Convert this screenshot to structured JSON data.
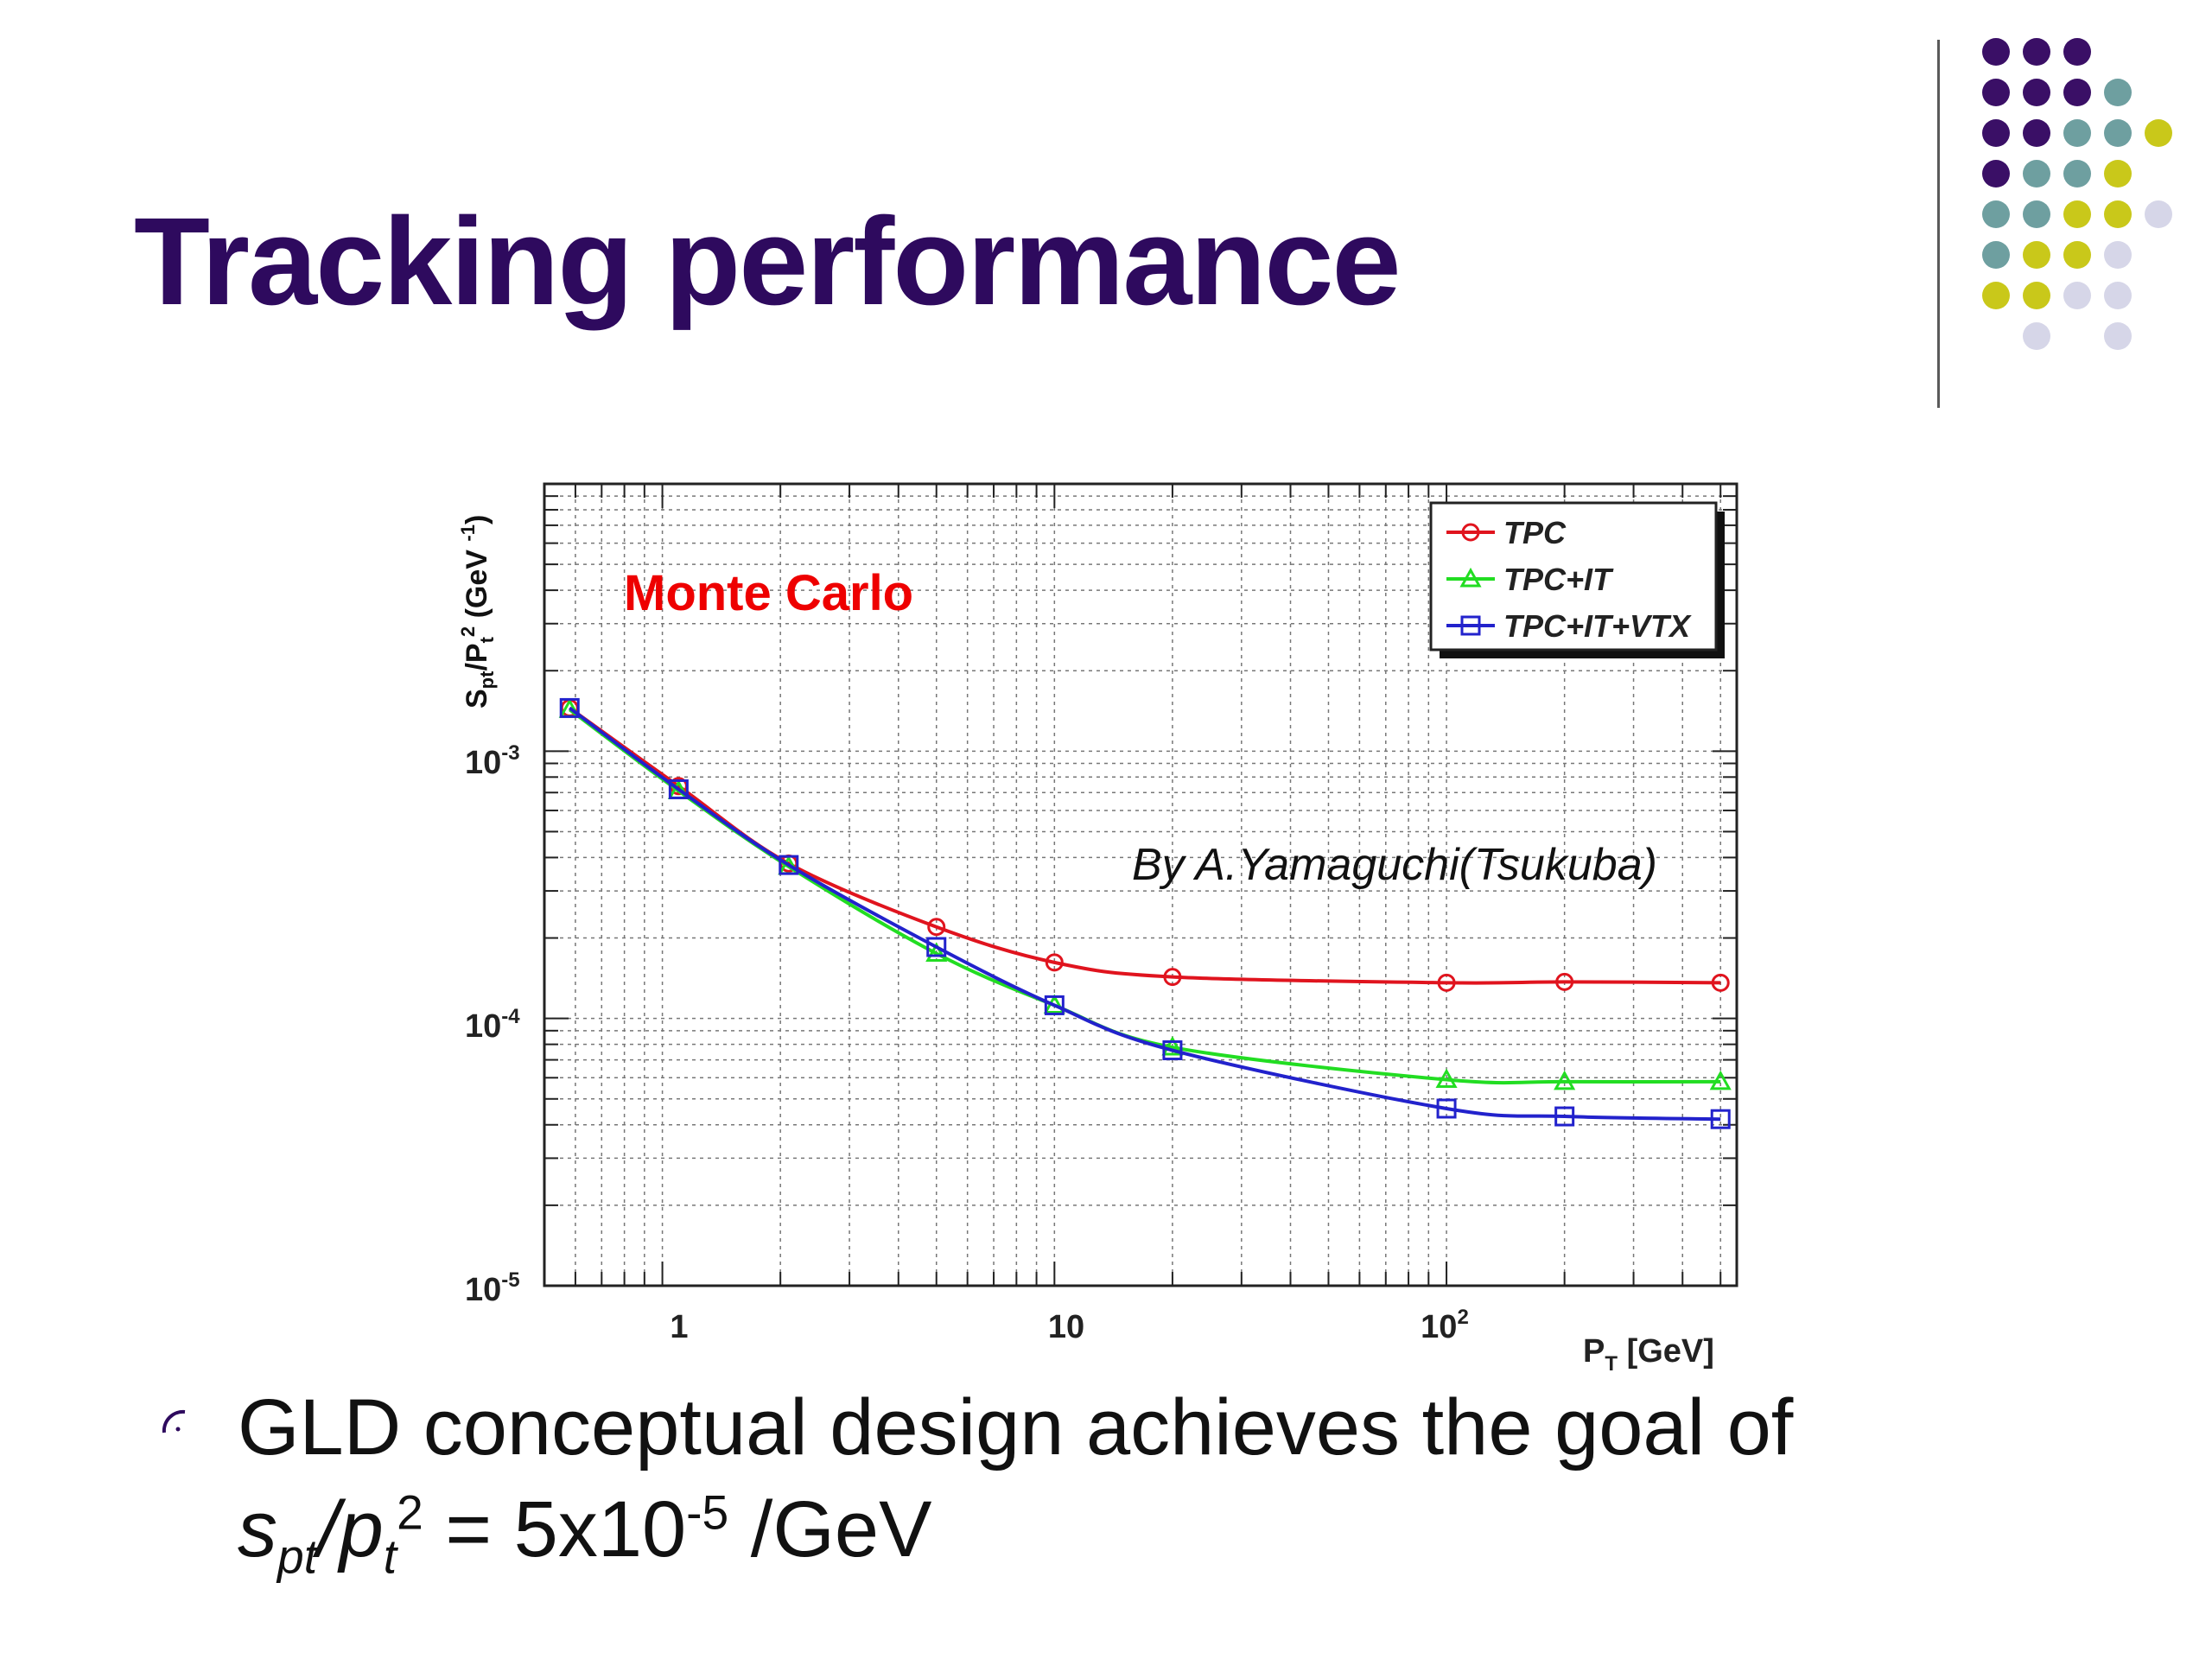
{
  "slide": {
    "title": "Tracking performance",
    "bullet_line1": "GLD conceptual design achieves the goal of",
    "bullet_line2": {
      "s": "s",
      "s_sub": "pt",
      "slash": "/",
      "p": "p",
      "p_sub": "t",
      "p_sup": "2",
      "equals": " = 5x10",
      "exp": "-5",
      "unit": " /GeV"
    }
  },
  "colors": {
    "title": "#2e0a5e",
    "tpc": "#e0141e",
    "tpc_it": "#22dd22",
    "tpc_it_vtx": "#2222cc",
    "annotation": "#ee0000",
    "decor_purple": "#3a0f66",
    "decor_teal": "#6e9fa0",
    "decor_yellow": "#c9c81a",
    "decor_lavender": "#d6d6e8"
  },
  "chart_data": {
    "type": "line",
    "x_scale": "log",
    "y_scale": "log",
    "xlim": [
      0.5,
      550
    ],
    "ylim": [
      1e-05,
      0.01
    ],
    "ytick_labels": [
      "10-3",
      "10-4",
      "10-5"
    ],
    "xtick_labels": [
      "1",
      "10",
      "102"
    ],
    "ylabel": "Spt/Pt2 (GeV -1)",
    "xlabel": "PT [GeV]",
    "annotation_main": "Monte Carlo",
    "annotation_credit": "By A.Yamaguchi(Tsukuba)",
    "grid": true,
    "legend_position": "top-right",
    "x": [
      0.58,
      1.1,
      2.1,
      5,
      10,
      20,
      100,
      200,
      500
    ],
    "series": [
      {
        "name": "TPC",
        "marker": "circle",
        "values": [
          0.00145,
          0.00074,
          0.00038,
          0.00022,
          0.000162,
          0.000143,
          0.000136,
          0.000137,
          0.000136
        ]
      },
      {
        "name": "TPC+IT",
        "marker": "triangle",
        "values": [
          0.00143,
          0.00071,
          0.00037,
          0.000175,
          0.000112,
          7.8e-05,
          5.9e-05,
          5.8e-05,
          5.8e-05
        ]
      },
      {
        "name": "TPC+IT+VTX",
        "marker": "square",
        "values": [
          0.00145,
          0.00072,
          0.000375,
          0.000185,
          0.000112,
          7.6e-05,
          4.6e-05,
          4.3e-05,
          4.2e-05
        ]
      }
    ]
  }
}
